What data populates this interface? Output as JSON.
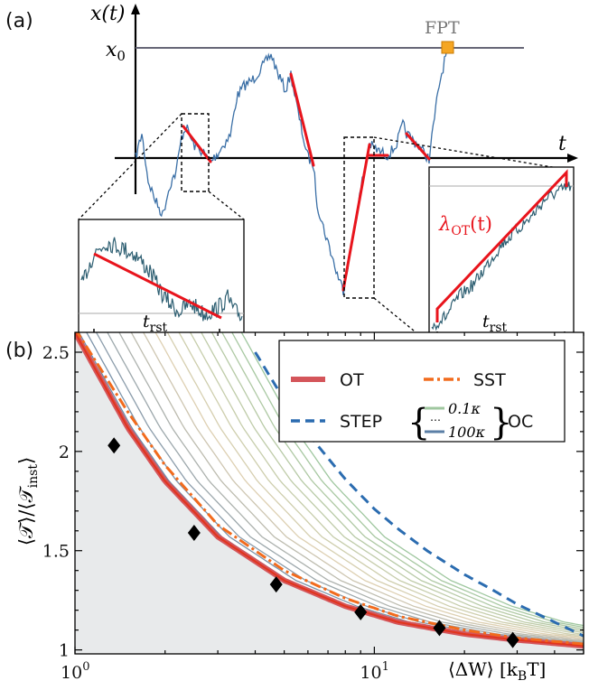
{
  "chart_data": [
    {
      "panel": "(a)",
      "type": "line",
      "xlabel": "t",
      "ylabel": "x(t)",
      "threshold_label": "x",
      "threshold_sub": "0",
      "fpt_label": "FPT",
      "inset_lambda_label": "λ",
      "inset_lambda_sub": "OT",
      "inset_lambda_suffix": "(t)",
      "inset_t_label": "t",
      "inset_t_sub": "rst",
      "colors": {
        "trajectory": "#3a6fa6",
        "reset_protocol": "#e8141c",
        "threshold": "#666677",
        "fpt_marker": "#f5a623"
      }
    },
    {
      "panel": "(b)",
      "type": "line",
      "x_scale": "log",
      "xlim": [
        1,
        50
      ],
      "ylim": [
        0.98,
        2.6
      ],
      "x_ticks": [
        {
          "value": 1,
          "base": "10",
          "exp": "0"
        },
        {
          "value": 10,
          "base": "10",
          "exp": "1"
        }
      ],
      "y_ticks": [
        {
          "value": 1,
          "label": "1"
        },
        {
          "value": 1.5,
          "label": "1.5"
        },
        {
          "value": 2,
          "label": "2"
        },
        {
          "value": 2.5,
          "label": "2.5"
        }
      ],
      "xlabel": "⟨ΔW⟩ [k",
      "xlabel_sub": "B",
      "xlabel_suffix": "T]",
      "ylabel": "⟨𝒯⟩/⟨𝒯",
      "ylabel_sub": "inst",
      "ylabel_suffix": "⟩",
      "legend": {
        "placement": "top-right",
        "items": [
          {
            "label": "OT",
            "color": "#d4555a",
            "style": "solid"
          },
          {
            "label": "SST",
            "color": "#f26b1d",
            "style": "dashdot"
          },
          {
            "label": "STEP",
            "color": "#2b6cb0",
            "style": "dashed"
          },
          {
            "label": "OC",
            "style": "family",
            "low": "0.1κ",
            "mid": "⋯",
            "high": "100κ",
            "low_color": "#9fc79f",
            "high_color": "#5b7fa6"
          }
        ]
      },
      "series": [
        {
          "name": "OT",
          "x": [
            1,
            1.5,
            2,
            3,
            5,
            8,
            12,
            20,
            30,
            50
          ],
          "y": [
            2.6,
            2.12,
            1.85,
            1.57,
            1.35,
            1.22,
            1.14,
            1.08,
            1.05,
            1.02
          ]
        },
        {
          "name": "SST",
          "x": [
            1,
            1.5,
            2,
            3,
            5,
            8,
            12,
            20,
            30,
            50
          ],
          "y": [
            2.62,
            2.2,
            1.93,
            1.63,
            1.4,
            1.26,
            1.17,
            1.1,
            1.06,
            1.03
          ]
        },
        {
          "name": "STEP",
          "x": [
            4,
            5,
            6,
            8,
            10,
            12,
            15,
            20,
            25,
            30,
            40,
            50
          ],
          "y": [
            2.5,
            2.26,
            2.09,
            1.86,
            1.71,
            1.61,
            1.5,
            1.38,
            1.3,
            1.23,
            1.14,
            1.07
          ]
        }
      ],
      "markers": {
        "shape": "diamond",
        "x": [
          1.35,
          2.5,
          4.7,
          9,
          16.5,
          29
        ],
        "y": [
          2.03,
          1.59,
          1.33,
          1.19,
          1.11,
          1.05
        ]
      },
      "oc_family_count": 17,
      "colors": {
        "shaded_region": "#e8eaeb"
      }
    }
  ]
}
